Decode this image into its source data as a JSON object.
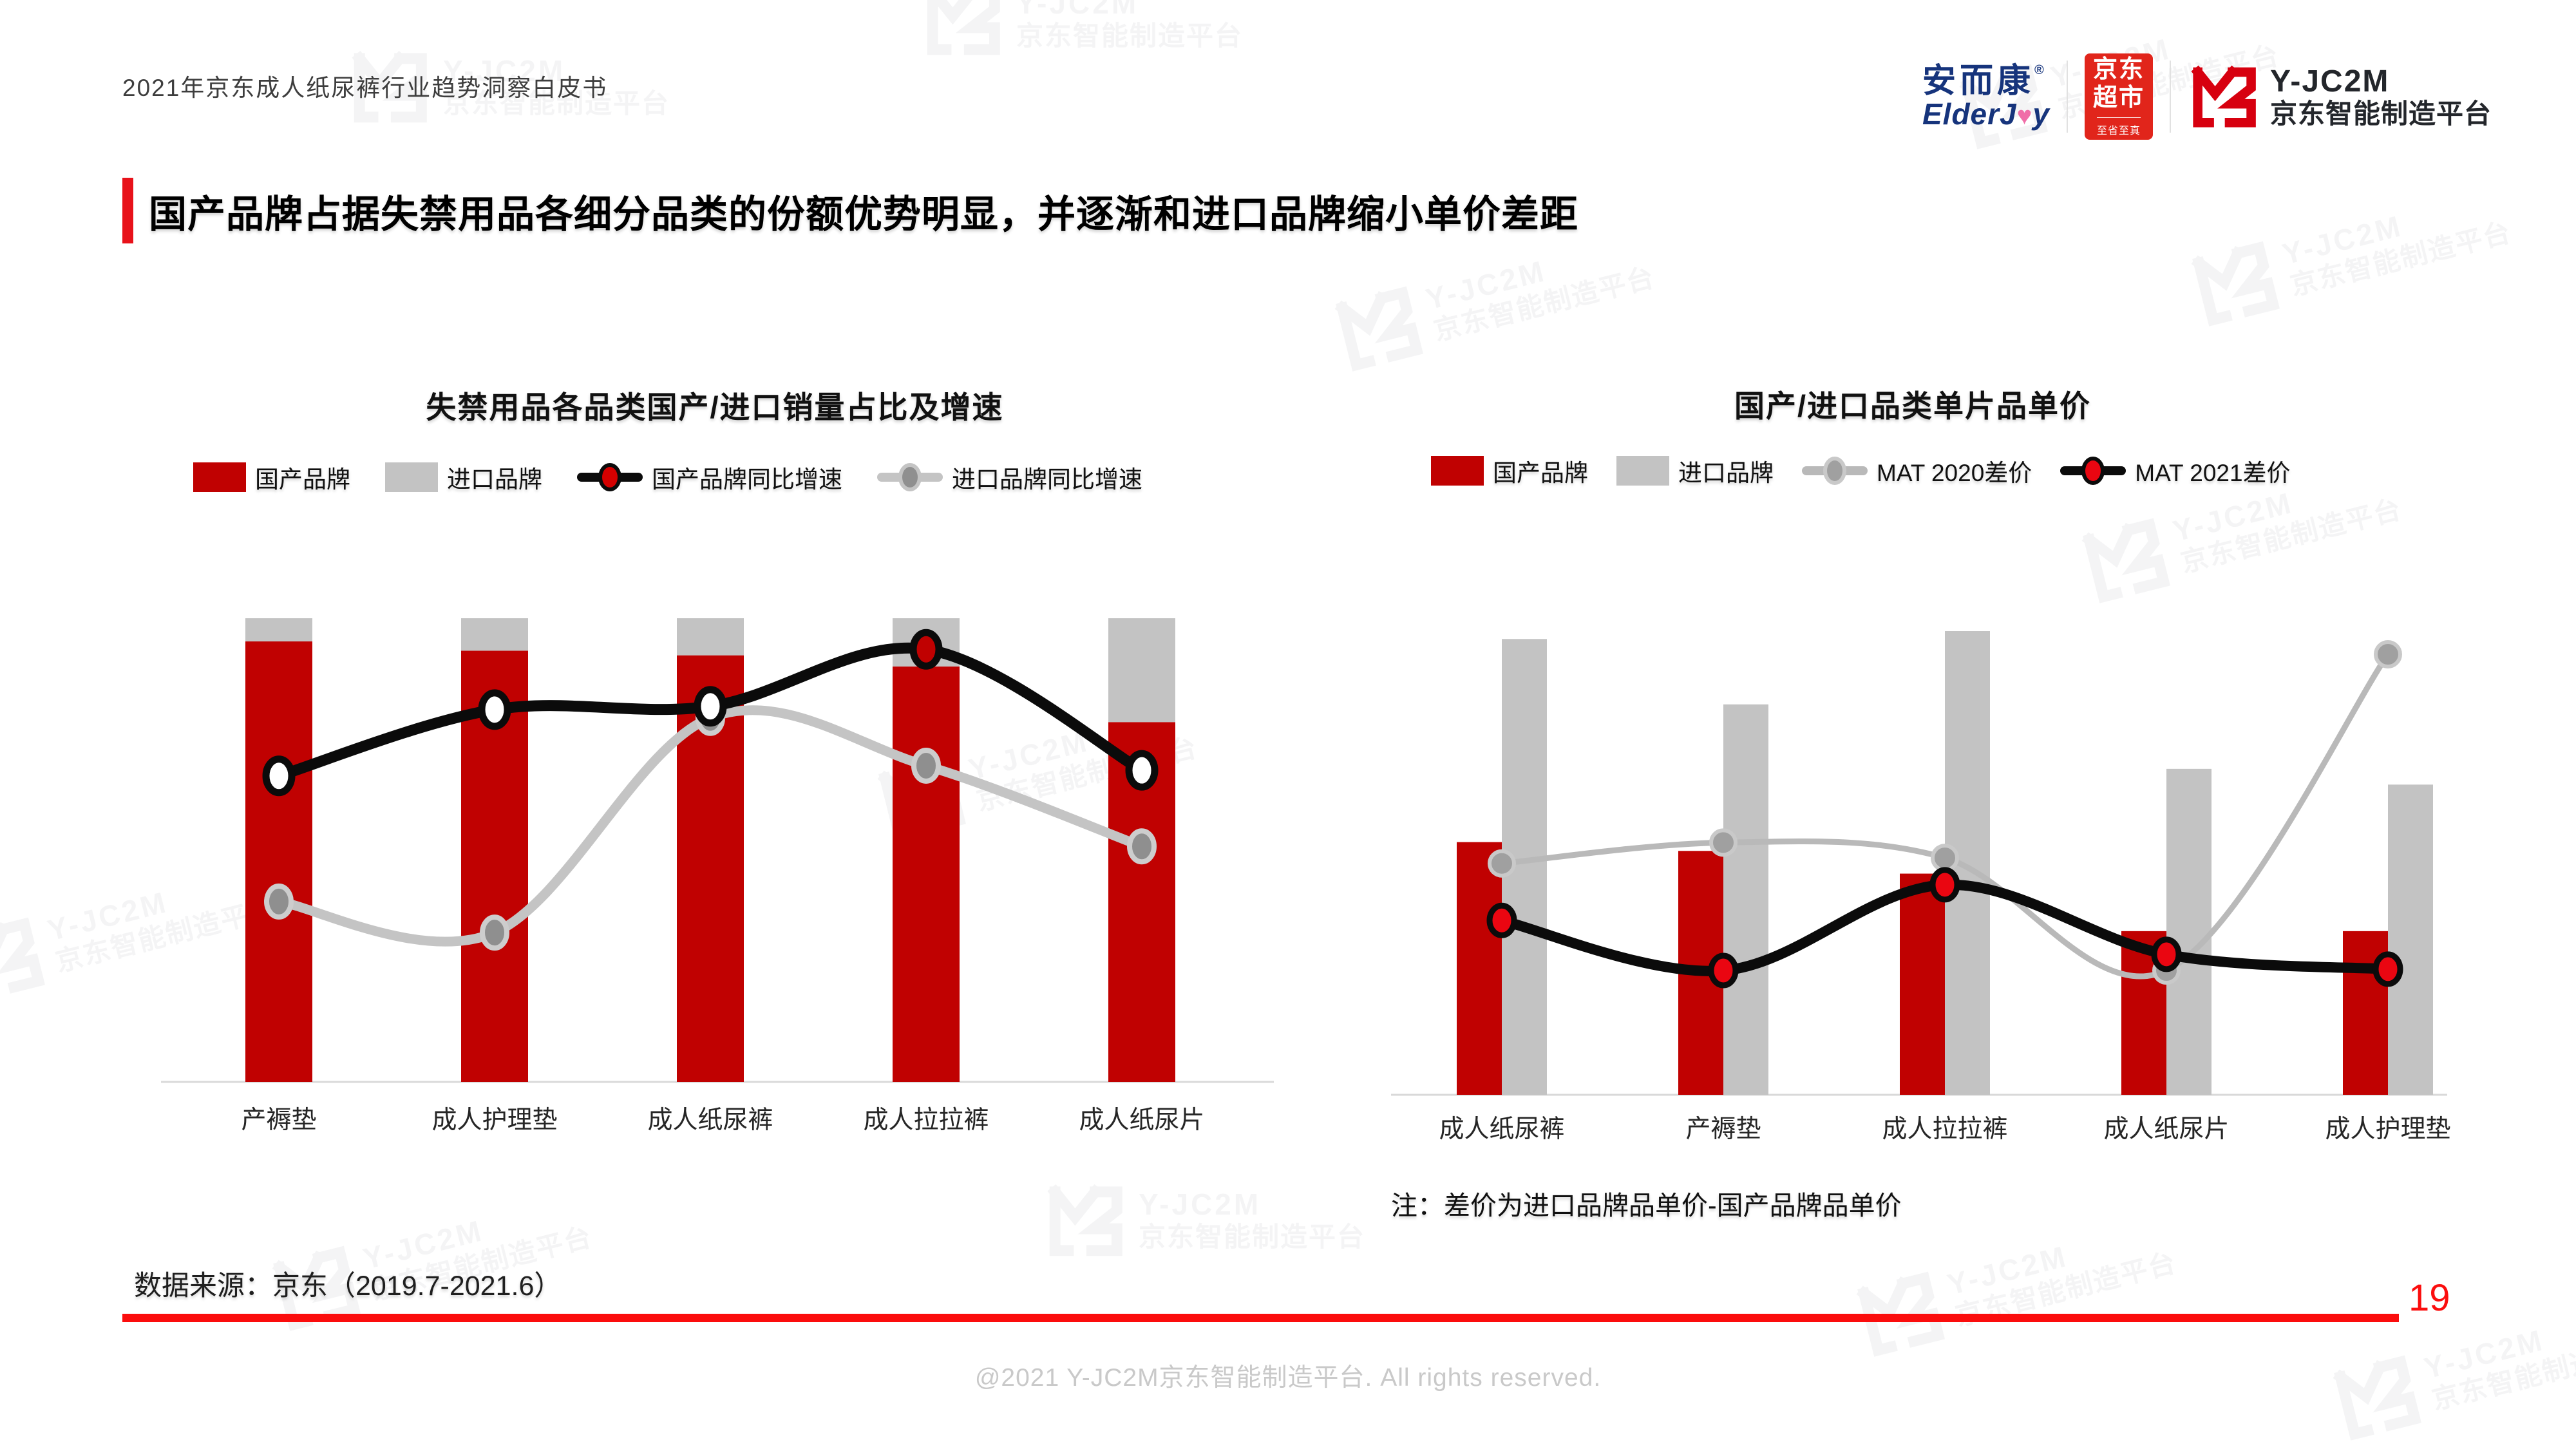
{
  "page": {
    "header_label": "2021年京东成人纸尿裤行业趋势洞察白皮书",
    "title": "国产品牌占据失禁用品各细分品类的份额优势明显，并逐渐和进口品牌缩小单价差距",
    "source_note": "数据来源：京东（2019.7-2021.6）",
    "page_number": "19",
    "copyright": "@2021 Y-JC2M京东智能制造平台. All rights reserved."
  },
  "logos": {
    "elderjoy": {
      "cn": "安而康",
      "reg": "®",
      "en_left": "ElderJ",
      "heart": "♥",
      "en_right": "y",
      "blue": "#16347C",
      "pink": "#F06EA8"
    },
    "jd_market": {
      "line1": "京东",
      "line2": "超市",
      "tagline": "至省至真",
      "red": "#E1251B"
    },
    "yjc2m": {
      "name": "Y-JC2M",
      "subtitle": "京东智能制造平台",
      "mark_red": "#D7000F"
    }
  },
  "watermark": {
    "line1": "Y-JC2M",
    "line2": "京东智能制造平台"
  },
  "colors": {
    "bar_domestic_red": "#C00101",
    "bar_import_gray": "#C3C3C3",
    "line_black": "#0B0B0B",
    "line_gray": "#C4C4C4",
    "accent_red": "#E8121A",
    "bottom_line_red": "#FB0D0D",
    "axis_gray": "#D9D9D9",
    "label_color": "#262626"
  },
  "chart_data": [
    {
      "type": "bar",
      "bar_mode": "stacked",
      "title": "失禁用品各品类国产/进口销量占比及增速",
      "value_scale": "percent of plot height; y axes not labeled in source",
      "categories": [
        "产褥垫",
        "成人护理垫",
        "成人纸尿裤",
        "成人拉拉裤",
        "成人纸尿片"
      ],
      "axis_color": "#D9D9D9",
      "label_color": "#262626",
      "legend": [
        {
          "label": "国产品牌",
          "type": "rect",
          "color": "#C00101"
        },
        {
          "label": "进口品牌",
          "type": "rect",
          "color": "#C3C3C3"
        },
        {
          "label": "国产品牌同比增速",
          "type": "line",
          "color": "#0B0B0B",
          "marker": "#D40000",
          "ring": "#0B0B0B"
        },
        {
          "label": "进口品牌同比增速",
          "type": "line",
          "color": "#C4C4C4",
          "marker": "#8F8F8F",
          "ring": "#C4C4C4"
        }
      ],
      "series": [
        {
          "name": "国产品牌",
          "type": "bar",
          "color": "#C00101",
          "values": [
            95,
            93,
            92,
            89.6,
            77.6
          ]
        },
        {
          "name": "进口品牌",
          "type": "bar",
          "color": "#C3C3C3",
          "values": [
            5,
            7,
            8,
            10.4,
            22.4
          ]
        },
        {
          "name": "进口品牌同比增速",
          "type": "line",
          "color": "#C4C4C4",
          "values": [
            38.9,
            32.2,
            78.5,
            68.2,
            50.8
          ],
          "marker_fill": "#8F8F8F",
          "marker_ring": "#CDCDCD"
        },
        {
          "name": "国产品牌同比增速",
          "type": "line",
          "color": "#0B0B0B",
          "values": [
            66,
            80.3,
            81,
            93.3,
            67.2
          ],
          "marker_fill": [
            "#FFFFFF",
            "#FFFFFF",
            "#FFFFFF",
            "#C00101",
            "#FFFFFF"
          ],
          "marker_ring": "#0B0B0B"
        }
      ]
    },
    {
      "type": "bar",
      "bar_mode": "grouped",
      "title": "国产/进口品类单片品单价",
      "value_scale": "percent of plot height; y axes not labeled in source",
      "categories": [
        "成人纸尿裤",
        "产褥垫",
        "成人拉拉裤",
        "成人纸尿片",
        "成人护理垫"
      ],
      "footnote": "注：差价为进口品牌品单价-国产品牌品单价",
      "axis_color": "#D9D9D9",
      "label_color": "#262626",
      "legend": [
        {
          "label": "国产品牌",
          "type": "rect",
          "color": "#C00101"
        },
        {
          "label": "进口品牌",
          "type": "rect",
          "color": "#C3C3C3"
        },
        {
          "label": "MAT 2020差价",
          "type": "line",
          "color": "#B9B9B9",
          "marker": "#A0A0A0",
          "ring": "#C9C9C9"
        },
        {
          "label": "MAT 2021差价",
          "type": "line",
          "color": "#0B0B0B",
          "marker": "#EA0611",
          "ring": "#0B0B0B"
        }
      ],
      "series": [
        {
          "name": "国产品牌",
          "type": "bar",
          "color": "#C00101",
          "values": [
            54.5,
            52.6,
            47.7,
            35.3,
            35.3
          ]
        },
        {
          "name": "进口品牌",
          "type": "bar",
          "color": "#C3C3C3",
          "values": [
            98.3,
            84.2,
            100,
            70.3,
            66.9
          ]
        },
        {
          "name": "MAT 2020差价",
          "type": "line",
          "color": "#B9B9B9",
          "values": [
            49.9,
            54.4,
            51.1,
            26.8,
            95
          ],
          "marker_fill": "#A0A0A0",
          "marker_ring": "#C9C9C9"
        },
        {
          "name": "MAT 2021差价",
          "type": "line",
          "color": "#0B0B0B",
          "values": [
            37.6,
            26.8,
            45.3,
            30.3,
            27.1
          ],
          "marker_fill": "#EA0611",
          "marker_ring": "#0B0B0B"
        }
      ]
    }
  ]
}
